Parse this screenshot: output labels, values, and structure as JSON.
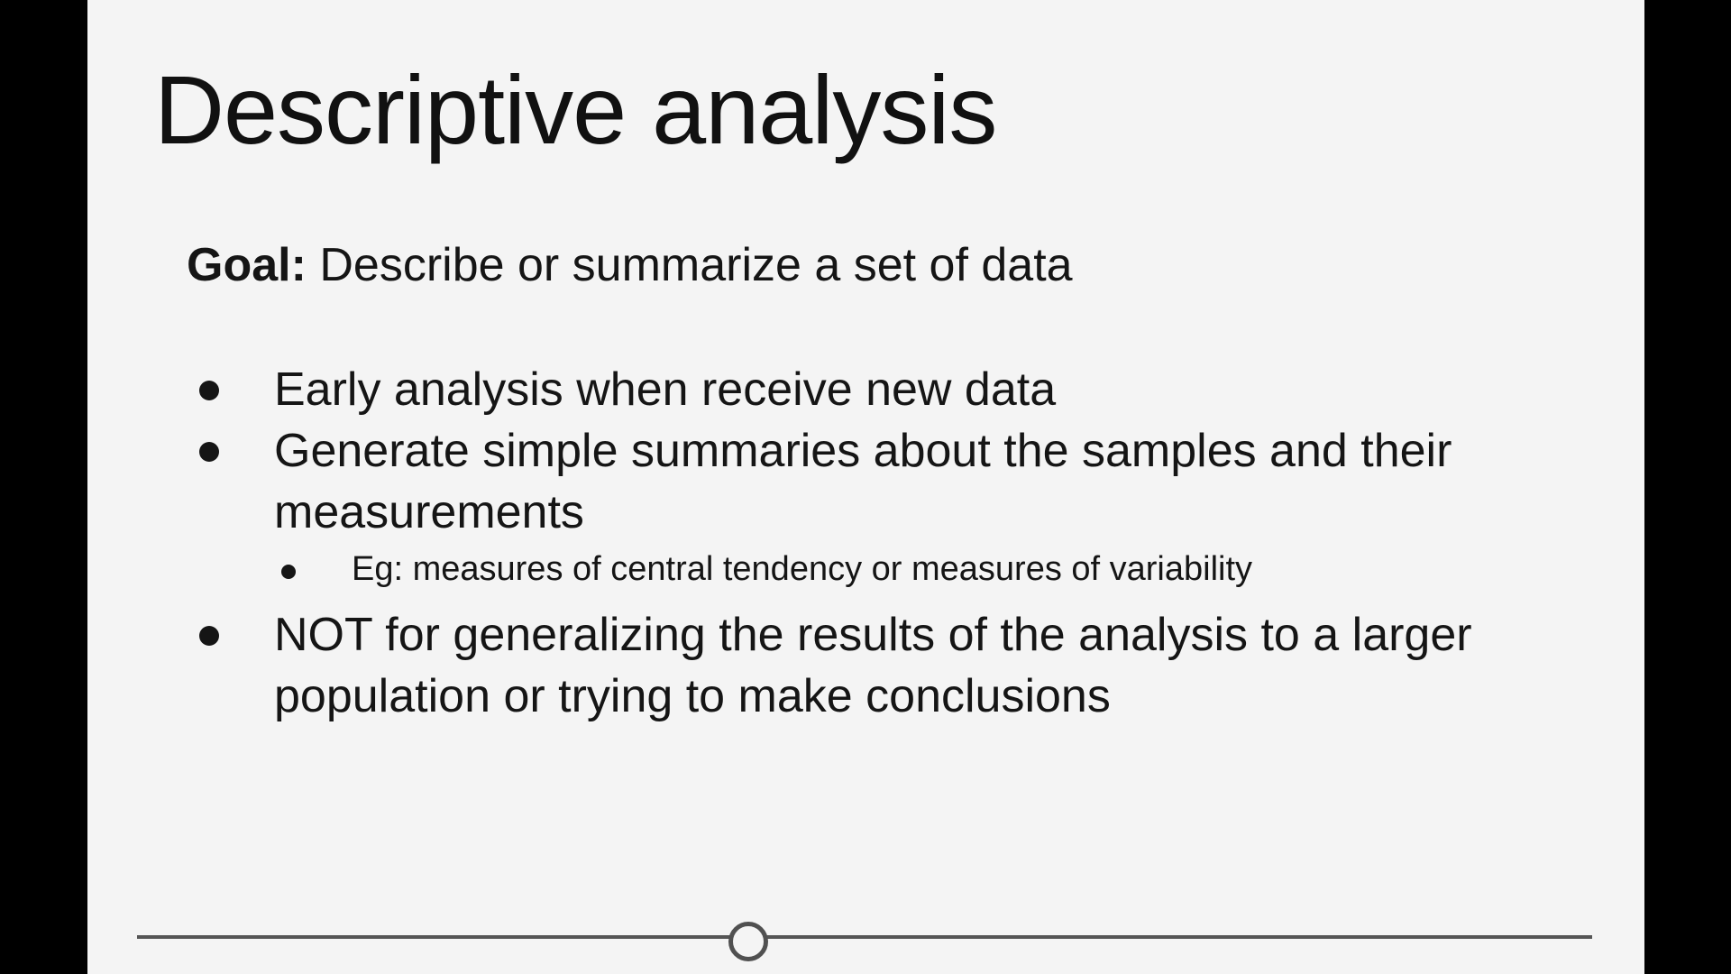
{
  "slide": {
    "title": "Descriptive analysis",
    "goal": {
      "label": "Goal:",
      "text": " Describe or summarize a set of data"
    },
    "bullets": [
      {
        "text": "Early analysis when receive new data"
      },
      {
        "text": "Generate simple summaries about the samples and their measurements"
      },
      {
        "text": "NOT for generalizing the results of the analysis to a larger population or trying to make conclusions"
      }
    ],
    "sub_bullets": [
      {
        "text": "Eg: measures of central tendency or measures of variability"
      }
    ]
  },
  "player": {
    "progress_fraction": 0.42
  },
  "colors": {
    "letterbox": "#000000",
    "slide_background": "#f4f4f4",
    "text": "#151515",
    "progress_line": "#555555"
  }
}
